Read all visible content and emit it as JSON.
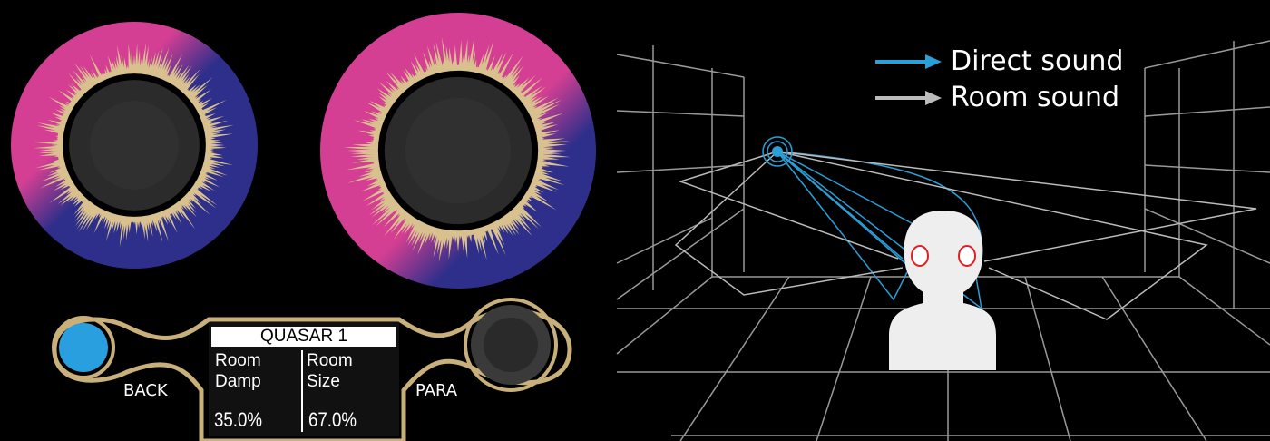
{
  "device": {
    "display": {
      "title": "QUASAR 1",
      "params": [
        {
          "name": "Room Damp",
          "value": "35.0%"
        },
        {
          "name": "Room Size",
          "value": "67.0%"
        }
      ]
    },
    "buttons": {
      "back": "BACK",
      "para": "PARA"
    }
  },
  "diagram": {
    "legend": [
      {
        "label": "Direct sound",
        "color": "#2a9fd8"
      },
      {
        "label": "Room sound",
        "color": "#bbbbbb"
      }
    ]
  }
}
